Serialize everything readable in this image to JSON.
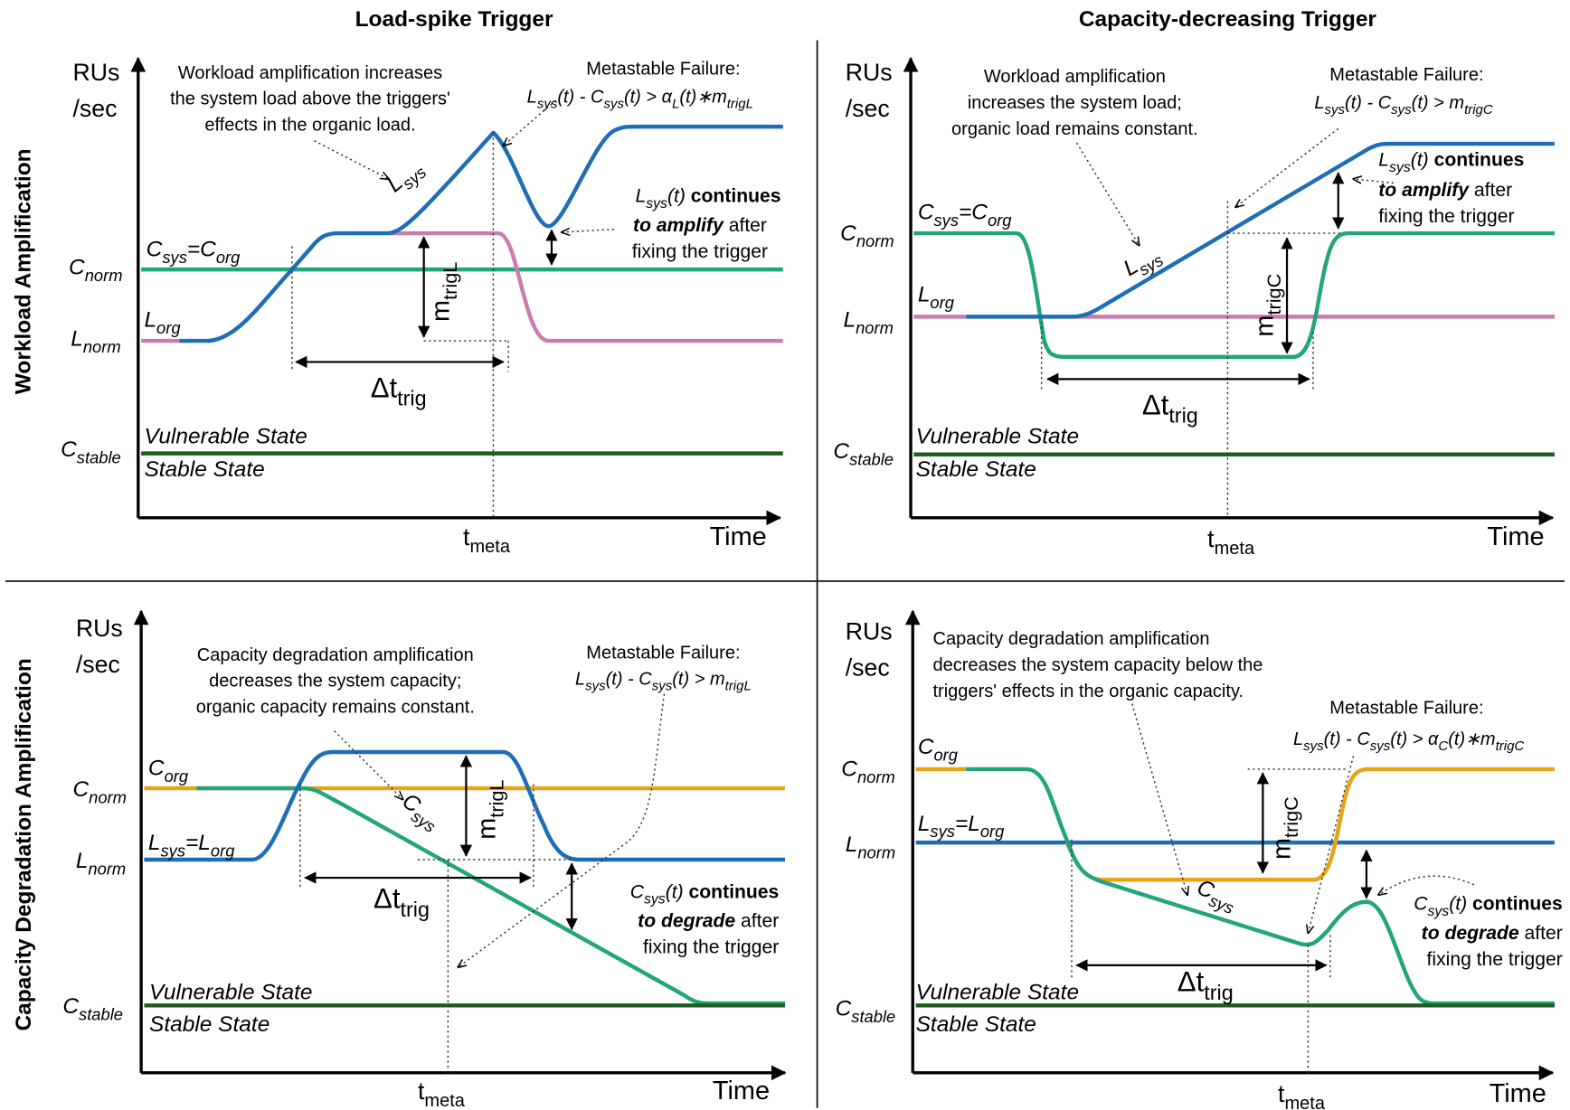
{
  "columns": [
    "Load-spike Trigger",
    "Capacity-decreasing Trigger"
  ],
  "rows": [
    "Workload Amplification",
    "Capacity Degradation Amplification"
  ],
  "panels": [
    {
      "y_axis": [
        "RUs",
        "/sec"
      ],
      "x_axis": "Time",
      "t_meta": [
        "t",
        {
          "sub": "meta"
        }
      ],
      "c_norm": [
        "C",
        {
          "sub": "norm"
        }
      ],
      "l_norm": [
        "L",
        {
          "sub": "norm"
        }
      ],
      "c_stable": [
        "C",
        {
          "sub": "stable"
        }
      ],
      "vulnerable_state": "Vulnerable State",
      "stable_state": "Stable State",
      "capacity_label": [
        "C",
        {
          "sub": "sys"
        },
        "=C",
        {
          "sub": "org"
        }
      ],
      "load_label": [
        "L",
        {
          "sub": "org"
        }
      ],
      "curve_label": [
        "L",
        {
          "sub": "sys"
        }
      ],
      "note": [
        "Workload amplification increases",
        "the system load above the triggers'",
        "effects in the organic load."
      ],
      "failure": {
        "title": "Metastable Failure:",
        "condition": [
          "L",
          {
            "sub": "sys"
          },
          "(t) - C",
          {
            "sub": "sys"
          },
          "(t) > α",
          {
            "sub": "L"
          },
          "(t)∗m",
          {
            "sub": "trigL"
          }
        ]
      },
      "trigger_magnitude": [
        "m",
        {
          "sub": "trigL"
        }
      ],
      "trigger_duration": [
        "Δt",
        {
          "sub": "trig"
        }
      ],
      "after_effect": [
        [
          "L",
          {
            "sub": "sys"
          },
          "(t) ",
          {
            "bold": "continues"
          }
        ],
        [
          {
            "bold_italic": "to amplify"
          },
          " after"
        ],
        [
          "fixing the trigger"
        ]
      ]
    },
    {
      "y_axis": [
        "RUs",
        "/sec"
      ],
      "x_axis": "Time",
      "t_meta": [
        "t",
        {
          "sub": "meta"
        }
      ],
      "c_norm": [
        "C",
        {
          "sub": "norm"
        }
      ],
      "l_norm": [
        "L",
        {
          "sub": "norm"
        }
      ],
      "c_stable": [
        "C",
        {
          "sub": "stable"
        }
      ],
      "vulnerable_state": "Vulnerable State",
      "stable_state": "Stable State",
      "capacity_label": [
        "C",
        {
          "sub": "sys"
        },
        "=C",
        {
          "sub": "org"
        }
      ],
      "load_label": [
        "L",
        {
          "sub": "org"
        }
      ],
      "curve_label": [
        "L",
        {
          "sub": "sys"
        }
      ],
      "note": [
        "Workload amplification",
        "increases the system load;",
        "organic load remains constant."
      ],
      "failure": {
        "title": "Metastable Failure:",
        "condition": [
          "L",
          {
            "sub": "sys"
          },
          "(t) - C",
          {
            "sub": "sys"
          },
          "(t) > m",
          {
            "sub": "trigC"
          }
        ]
      },
      "trigger_magnitude": [
        "m",
        {
          "sub": "trigC"
        }
      ],
      "trigger_duration": [
        "Δt",
        {
          "sub": "trig"
        }
      ],
      "after_effect": [
        [
          "L",
          {
            "sub": "sys"
          },
          "(t) ",
          {
            "bold": "continues"
          }
        ],
        [
          {
            "bold_italic": "to amplify"
          },
          " after"
        ],
        [
          "fixing the trigger"
        ]
      ]
    },
    {
      "y_axis": [
        "RUs",
        "/sec"
      ],
      "x_axis": "Time",
      "t_meta": [
        "t",
        {
          "sub": "meta"
        }
      ],
      "c_norm": [
        "C",
        {
          "sub": "norm"
        }
      ],
      "l_norm": [
        "L",
        {
          "sub": "norm"
        }
      ],
      "c_stable": [
        "C",
        {
          "sub": "stable"
        }
      ],
      "vulnerable_state": "Vulnerable State",
      "stable_state": "Stable State",
      "capacity_label": [
        "C",
        {
          "sub": "org"
        }
      ],
      "load_label": [
        "L",
        {
          "sub": "sys"
        },
        "=L",
        {
          "sub": "org"
        }
      ],
      "curve_label": [
        "C",
        {
          "sub": "sys"
        }
      ],
      "note": [
        "Capacity degradation amplification",
        "decreases the system capacity;",
        "organic capacity remains constant."
      ],
      "failure": {
        "title": "Metastable Failure:",
        "condition": [
          "L",
          {
            "sub": "sys"
          },
          "(t) - C",
          {
            "sub": "sys"
          },
          "(t) > m",
          {
            "sub": "trigL"
          }
        ]
      },
      "trigger_magnitude": [
        "m",
        {
          "sub": "trigL"
        }
      ],
      "trigger_duration": [
        "Δt",
        {
          "sub": "trig"
        }
      ],
      "after_effect": [
        [
          "C",
          {
            "sub": "sys"
          },
          "(t) ",
          {
            "bold": "continues"
          }
        ],
        [
          {
            "bold_italic": "to degrade"
          },
          " after"
        ],
        [
          "fixing the trigger"
        ]
      ]
    },
    {
      "y_axis": [
        "RUs",
        "/sec"
      ],
      "x_axis": "Time",
      "t_meta": [
        "t",
        {
          "sub": "meta"
        }
      ],
      "c_norm": [
        "C",
        {
          "sub": "norm"
        }
      ],
      "l_norm": [
        "L",
        {
          "sub": "norm"
        }
      ],
      "c_stable": [
        "C",
        {
          "sub": "stable"
        }
      ],
      "vulnerable_state": "Vulnerable State",
      "stable_state": "Stable State",
      "capacity_label": [
        "C",
        {
          "sub": "org"
        }
      ],
      "load_label": [
        "L",
        {
          "sub": "sys"
        },
        "=L",
        {
          "sub": "org"
        }
      ],
      "curve_label": [
        "C",
        {
          "sub": "sys"
        }
      ],
      "note": [
        "Capacity degradation amplification",
        "decreases the system capacity below the",
        "triggers' effects in the organic capacity."
      ],
      "failure": {
        "title": "Metastable Failure:",
        "condition": [
          "L",
          {
            "sub": "sys"
          },
          "(t) - C",
          {
            "sub": "sys"
          },
          "(t) > α",
          {
            "sub": "C"
          },
          "(t)∗m",
          {
            "sub": "trigC"
          }
        ]
      },
      "trigger_magnitude": [
        "m",
        {
          "sub": "trigC"
        }
      ],
      "trigger_duration": [
        "Δt",
        {
          "sub": "trig"
        }
      ],
      "after_effect": [
        [
          "C",
          {
            "sub": "sys"
          },
          "(t) ",
          {
            "bold": "continues"
          }
        ],
        [
          {
            "bold_italic": "to degrade"
          },
          " after"
        ],
        [
          "fixing the trigger"
        ]
      ]
    }
  ]
}
